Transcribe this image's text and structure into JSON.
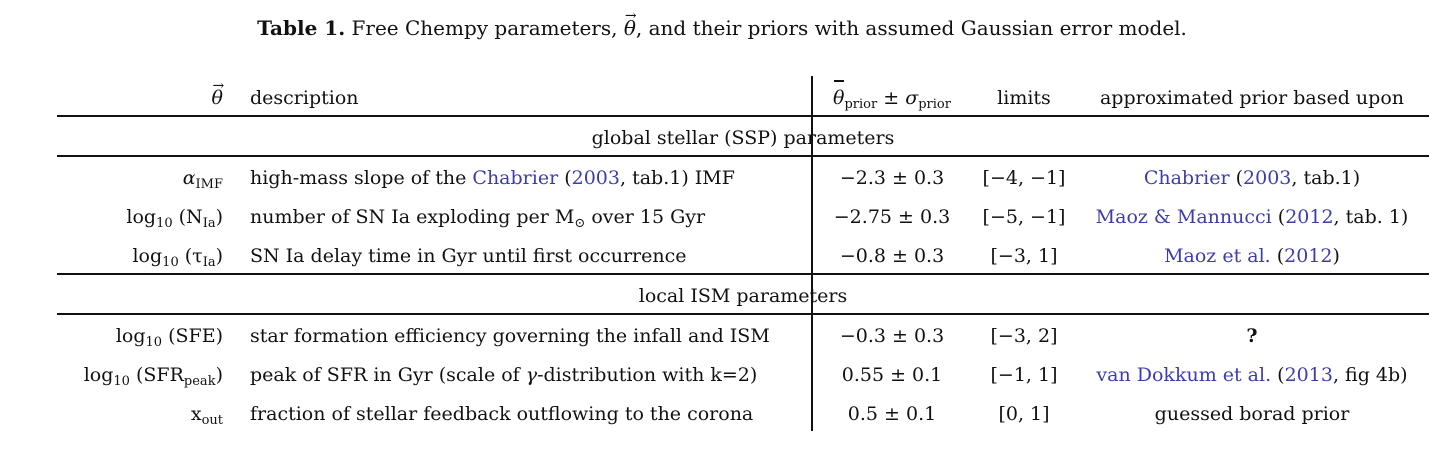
{
  "caption": {
    "label": "Table 1.",
    "pre": "Free Chempy parameters,",
    "theta": "θ",
    "post": ", and their priors with assumed Gaussian error model."
  },
  "header": {
    "theta": "θ",
    "description": "description",
    "prior_symbol": "θ",
    "prior_sub": "prior",
    "pm": " ± ",
    "sigma": "σ",
    "sigma_sub": "prior",
    "limits": "limits",
    "based_upon": "approximated prior based upon"
  },
  "sections": {
    "ssp": "global stellar (SSP) parameters",
    "ism": "local ISM parameters"
  },
  "rows": [
    {
      "param_main": "α",
      "param_sub": "IMF",
      "param_post": "",
      "desc_pre": "high-mass slope of the ",
      "desc_cite": "Chabrier",
      "desc_mid": " (",
      "desc_year": "2003",
      "desc_post": ", tab.1) IMF",
      "prior": "−2.3 ± 0.3",
      "limits": "[−4, −1]",
      "ref_cite": "Chabrier",
      "ref_mid": " (",
      "ref_year": "2003",
      "ref_post": ", tab.1)"
    },
    {
      "param_main": "log",
      "param_sub": "10",
      "param_post": " (N",
      "param_sub2": "Ia",
      "param_end": ")",
      "desc": "number of SN Ia exploding per M",
      "desc_sun": "⊙",
      "desc_end": " over 15 Gyr",
      "prior": "−2.75 ± 0.3",
      "limits": "[−5, −1]",
      "ref_cite": "Maoz & Mannucci",
      "ref_mid": " (",
      "ref_year": "2012",
      "ref_post": ", tab. 1)"
    },
    {
      "param_main": "log",
      "param_sub": "10",
      "param_post": " (τ",
      "param_sub2": "Ia",
      "param_end": ")",
      "desc": "SN Ia delay time in Gyr until first occurrence",
      "prior": "−0.8 ± 0.3",
      "limits": "[−3, 1]",
      "ref_cite": "Maoz et al.",
      "ref_mid": " (",
      "ref_year": "2012",
      "ref_post": ")"
    },
    {
      "param_main": "log",
      "param_sub": "10",
      "param_post": " (SFE)",
      "desc": "star formation efficiency governing the infall and ISM",
      "prior": "−0.3 ± 0.3",
      "limits": "[−3, 2]",
      "ref": "?"
    },
    {
      "param_main": "log",
      "param_sub": "10",
      "param_post": " (SFR",
      "param_sub2": "peak",
      "param_end": ")",
      "desc_pre": "peak of SFR in Gyr (scale of ",
      "desc_gamma": "γ",
      "desc_post": "-distribution with k=2)",
      "prior": "0.55 ± 0.1",
      "limits": "[−1, 1]",
      "ref_cite": "van Dokkum et al.",
      "ref_mid": " (",
      "ref_year": "2013",
      "ref_post": ", fig 4b)"
    },
    {
      "param_main": "x",
      "param_sub": "out",
      "param_post": "",
      "desc": "fraction of stellar feedback outflowing to the corona",
      "prior": "0.5 ± 0.1",
      "limits": "[0, 1]",
      "ref": "guessed borad prior"
    }
  ]
}
